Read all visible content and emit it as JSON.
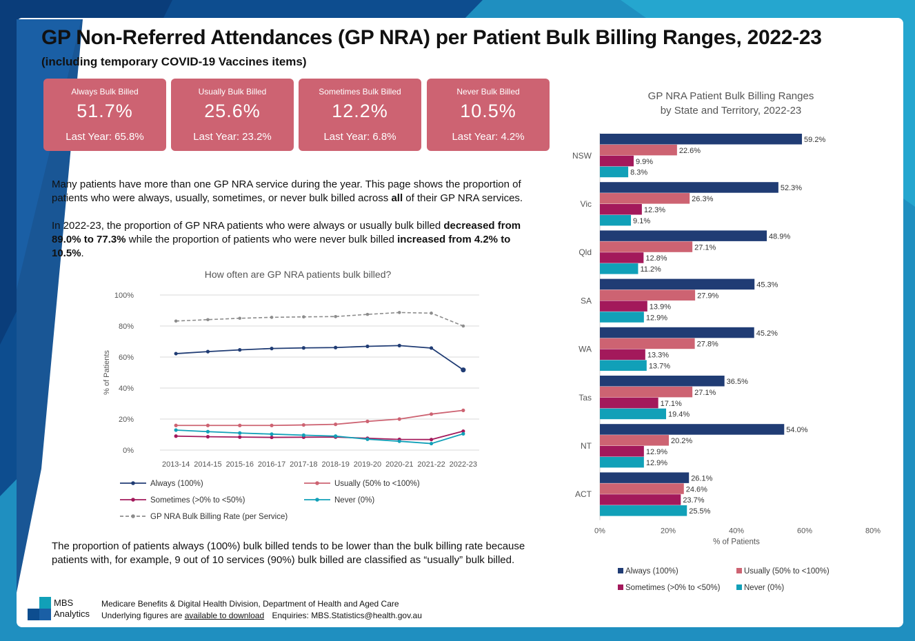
{
  "colors": {
    "always": "#203c74",
    "usually": "#cd6372",
    "sometimes": "#a3195b",
    "never": "#11a0b8",
    "rate": "#8c8c8c",
    "kpi_bg": "#cd6372",
    "brand_blue": "#1a5fa5"
  },
  "header": {
    "title": "GP Non-Referred Attendances (GP NRA) per Patient Bulk Billing Ranges, 2022-23",
    "subtitle": "(including temporary COVID-19 Vaccines items)"
  },
  "kpis": [
    {
      "label": "Always Bulk Billed",
      "value": "51.7%",
      "last_year": "Last Year: 65.8%"
    },
    {
      "label": "Usually Bulk Billed",
      "value": "25.6%",
      "last_year": "Last Year: 23.2%"
    },
    {
      "label": "Sometimes Bulk Billed",
      "value": "12.2%",
      "last_year": "Last Year: 6.8%"
    },
    {
      "label": "Never Bulk Billed",
      "value": "10.5%",
      "last_year": "Last Year: 4.2%"
    }
  ],
  "paragraphs": {
    "p1a": "Many patients have more than one GP NRA service during the year. This page shows the proportion of patients who were always, usually, sometimes, or never bulk billed across ",
    "p1b": "all",
    "p1c": " of their GP NRA services.",
    "p2a": "In 2022-23, the proportion of GP NRA patients who were always or usually bulk billed ",
    "p2b": "decreased from 89.0% to 77.3%",
    "p2c": " while the proportion of patients who were never bulk billed ",
    "p2d": "increased from 4.2% to 10.5%",
    "p2e": ".",
    "p3": "The proportion of patients always (100%) bulk billed tends to be lower than the bulk billing rate because patients with, for example, 9 out of 10 services (90%) bulk billed are classified as “usually” bulk billed."
  },
  "footer": {
    "logo_line1": "MBS",
    "logo_line2": "Analytics",
    "division": "Medicare Benefits & Digital Health Division, Department of Health and Aged Care",
    "figures_prefix": "Underlying figures are ",
    "figures_link": "available to download",
    "enquiries": "Enquiries: MBS.Statistics@health.gov.au"
  },
  "chart_data": [
    {
      "type": "line",
      "title": "How often are GP NRA patients bulk billed?",
      "xlabel": "",
      "ylabel": "% of Patients",
      "ylim": [
        0,
        100
      ],
      "yticks": [
        "0%",
        "20%",
        "40%",
        "60%",
        "80%",
        "100%"
      ],
      "yticks_values": [
        0,
        20,
        40,
        60,
        80,
        100
      ],
      "grid": true,
      "legend_position": "bottom",
      "categories": [
        "2013-14",
        "2014-15",
        "2015-16",
        "2016-17",
        "2017-18",
        "2018-19",
        "2019-20",
        "2020-21",
        "2021-22",
        "2022-23"
      ],
      "series": [
        {
          "name": "Always (100%)",
          "key": "always",
          "dashed": false,
          "values": [
            62.2,
            63.5,
            64.6,
            65.5,
            65.9,
            66.1,
            66.9,
            67.4,
            65.8,
            51.7
          ]
        },
        {
          "name": "Usually (50% to <100%)",
          "key": "usually",
          "dashed": false,
          "values": [
            15.9,
            15.9,
            15.9,
            15.9,
            16.2,
            16.6,
            18.5,
            20.0,
            23.2,
            25.6
          ]
        },
        {
          "name": "Sometimes (>0% to <50%)",
          "key": "sometimes",
          "dashed": false,
          "values": [
            9.0,
            8.6,
            8.4,
            8.2,
            8.3,
            8.4,
            7.6,
            6.9,
            6.8,
            12.2
          ]
        },
        {
          "name": "Never (0%)",
          "key": "never",
          "dashed": false,
          "values": [
            12.9,
            11.9,
            11.0,
            10.3,
            9.6,
            9.0,
            7.0,
            5.7,
            4.2,
            10.5
          ]
        },
        {
          "name": "GP NRA Bulk Billing Rate (per Service)",
          "key": "rate",
          "dashed": true,
          "values": [
            83.2,
            84.1,
            85.0,
            85.6,
            85.9,
            86.1,
            87.5,
            88.7,
            88.3,
            80.0
          ]
        }
      ]
    },
    {
      "type": "bar",
      "orientation": "horizontal",
      "title_line1": "GP NRA Patient Bulk Billing Ranges",
      "title_line2": "by State and Territory, 2022-23",
      "xlabel": "% of Patients",
      "ylabel": "",
      "xlim": [
        0,
        80
      ],
      "xticks": [
        "0%",
        "20%",
        "40%",
        "60%",
        "80%"
      ],
      "xticks_values": [
        0,
        20,
        40,
        60,
        80
      ],
      "legend_position": "bottom",
      "categories": [
        "NSW",
        "Vic",
        "Qld",
        "SA",
        "WA",
        "Tas",
        "NT",
        "ACT"
      ],
      "series": [
        {
          "name": "Always (100%)",
          "key": "always",
          "values": [
            59.2,
            52.3,
            48.9,
            45.3,
            45.2,
            36.5,
            54.0,
            26.1
          ],
          "labels": [
            "59.2%",
            "52.3%",
            "48.9%",
            "45.3%",
            "45.2%",
            "36.5%",
            "54.0%",
            "26.1%"
          ]
        },
        {
          "name": "Usually (50% to <100%)",
          "key": "usually",
          "values": [
            22.6,
            26.3,
            27.1,
            27.9,
            27.8,
            27.1,
            20.2,
            24.6
          ],
          "labels": [
            "22.6%",
            "26.3%",
            "27.1%",
            "27.9%",
            "27.8%",
            "27.1%",
            "20.2%",
            "24.6%"
          ]
        },
        {
          "name": "Sometimes (>0% to <50%)",
          "key": "sometimes",
          "values": [
            9.9,
            12.3,
            12.8,
            13.9,
            13.3,
            17.1,
            12.9,
            23.7
          ],
          "labels": [
            "9.9%",
            "12.3%",
            "12.8%",
            "13.9%",
            "13.3%",
            "17.1%",
            "12.9%",
            "23.7%"
          ]
        },
        {
          "name": "Never (0%)",
          "key": "never",
          "values": [
            8.3,
            9.1,
            11.2,
            12.9,
            13.7,
            19.4,
            12.9,
            25.5
          ],
          "labels": [
            "8.3%",
            "9.1%",
            "11.2%",
            "12.9%",
            "13.7%",
            "19.4%",
            "12.9%",
            "25.5%"
          ]
        }
      ]
    }
  ]
}
